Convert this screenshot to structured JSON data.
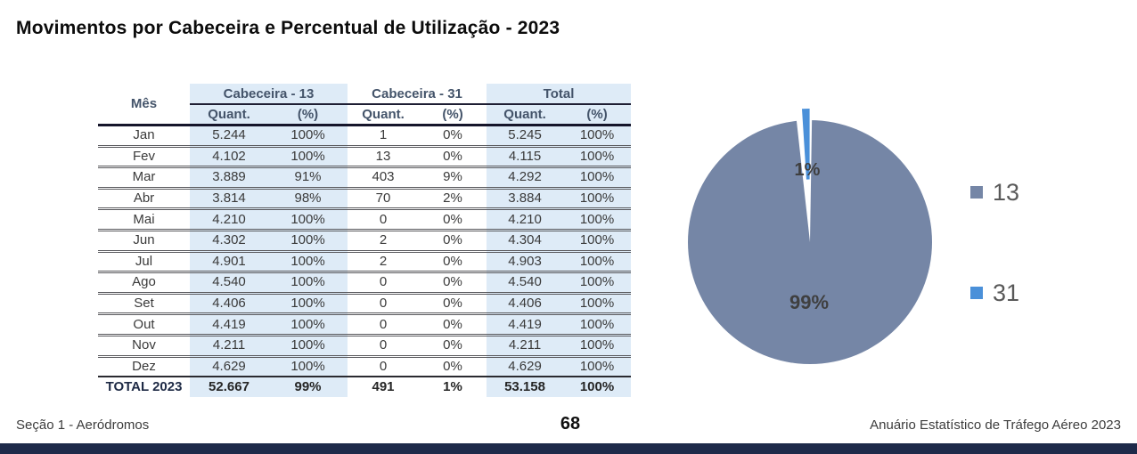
{
  "page": {
    "title": "Movimentos por Cabeceira e Percentual de Utilização - 2023",
    "footer_left": "Seção 1 - Aeródromos",
    "page_number": "68",
    "footer_right": "Anuário Estatístico de Tráfego Aéreo 2023"
  },
  "table": {
    "col_month": "Mês",
    "groups": [
      {
        "label": "Cabeceira - 13"
      },
      {
        "label": "Cabeceira - 31"
      },
      {
        "label": "Total"
      }
    ],
    "subheaders": [
      "Quant.",
      "(%)"
    ],
    "rows": [
      {
        "month": "Jan",
        "c13_q": "5.244",
        "c13_p": "100%",
        "c31_q": "1",
        "c31_p": "0%",
        "tot_q": "5.245",
        "tot_p": "100%"
      },
      {
        "month": "Fev",
        "c13_q": "4.102",
        "c13_p": "100%",
        "c31_q": "13",
        "c31_p": "0%",
        "tot_q": "4.115",
        "tot_p": "100%"
      },
      {
        "month": "Mar",
        "c13_q": "3.889",
        "c13_p": "91%",
        "c31_q": "403",
        "c31_p": "9%",
        "tot_q": "4.292",
        "tot_p": "100%"
      },
      {
        "month": "Abr",
        "c13_q": "3.814",
        "c13_p": "98%",
        "c31_q": "70",
        "c31_p": "2%",
        "tot_q": "3.884",
        "tot_p": "100%"
      },
      {
        "month": "Mai",
        "c13_q": "4.210",
        "c13_p": "100%",
        "c31_q": "0",
        "c31_p": "0%",
        "tot_q": "4.210",
        "tot_p": "100%"
      },
      {
        "month": "Jun",
        "c13_q": "4.302",
        "c13_p": "100%",
        "c31_q": "2",
        "c31_p": "0%",
        "tot_q": "4.304",
        "tot_p": "100%"
      },
      {
        "month": "Jul",
        "c13_q": "4.901",
        "c13_p": "100%",
        "c31_q": "2",
        "c31_p": "0%",
        "tot_q": "4.903",
        "tot_p": "100%"
      },
      {
        "month": "Ago",
        "c13_q": "4.540",
        "c13_p": "100%",
        "c31_q": "0",
        "c31_p": "0%",
        "tot_q": "4.540",
        "tot_p": "100%"
      },
      {
        "month": "Set",
        "c13_q": "4.406",
        "c13_p": "100%",
        "c31_q": "0",
        "c31_p": "0%",
        "tot_q": "4.406",
        "tot_p": "100%"
      },
      {
        "month": "Out",
        "c13_q": "4.419",
        "c13_p": "100%",
        "c31_q": "0",
        "c31_p": "0%",
        "tot_q": "4.419",
        "tot_p": "100%"
      },
      {
        "month": "Nov",
        "c13_q": "4.211",
        "c13_p": "100%",
        "c31_q": "0",
        "c31_p": "0%",
        "tot_q": "4.211",
        "tot_p": "100%"
      },
      {
        "month": "Dez",
        "c13_q": "4.629",
        "c13_p": "100%",
        "c31_q": "0",
        "c31_p": "0%",
        "tot_q": "4.629",
        "tot_p": "100%"
      }
    ],
    "total_row": {
      "month": "TOTAL 2023",
      "c13_q": "52.667",
      "c13_p": "99%",
      "c31_q": "491",
      "c31_p": "1%",
      "tot_q": "53.158",
      "tot_p": "100%"
    }
  },
  "chart_data": {
    "type": "pie",
    "categories": [
      "13",
      "31"
    ],
    "values": [
      99,
      1
    ],
    "percent_labels": [
      "99%",
      "1%"
    ],
    "colors": {
      "13": "#7586A6",
      "31": "#4A90D9"
    },
    "legend_position": "right",
    "start_angle_deg": 0,
    "direction": "clockwise",
    "title": ""
  },
  "colors": {
    "table_fill": "#DEEBF7",
    "header_text": "#44546A",
    "bottom_bar": "#1E2A4A",
    "label_text": "#3f3f3f",
    "legend_text": "#595959"
  }
}
